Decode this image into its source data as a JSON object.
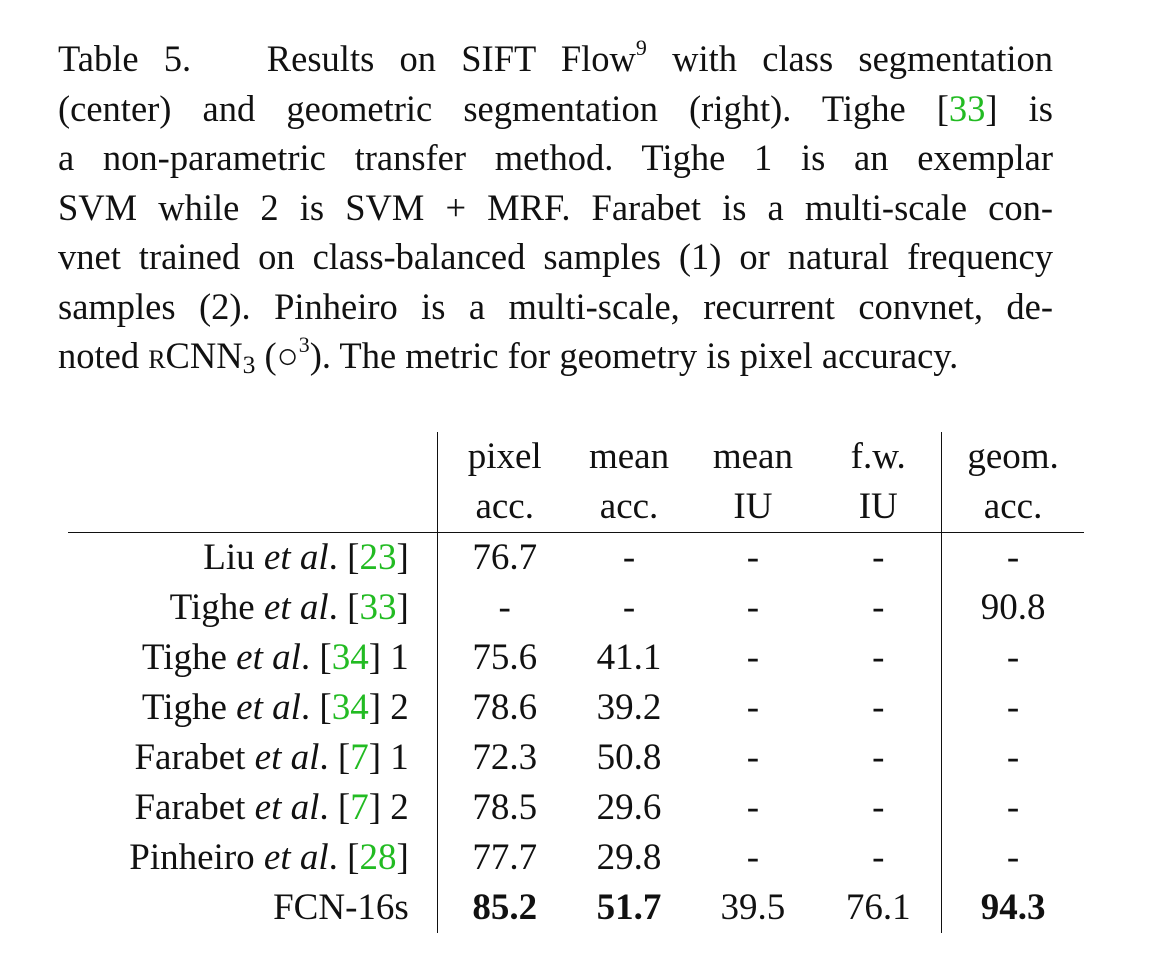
{
  "caption": {
    "lines": [
      [
        "Table 5.",
        "   Results on SIFT Flow",
        "9",
        " with class segmentation"
      ],
      [
        "(center) and geometric segmentation (right).  Tighe [",
        "33",
        "] is"
      ],
      [
        "a non-parametric transfer method.  Tighe 1 is an exemplar"
      ],
      [
        "SVM while 2 is SVM + MRF. Farabet is a multi-scale con-"
      ],
      [
        "vnet trained on class-balanced samples (1) or natural frequency"
      ],
      [
        "samples (2).  Pinheiro is a multi-scale, recurrent convnet, de-"
      ],
      [
        "noted ",
        "rCNN",
        "3",
        " (○",
        "3",
        "). The metric for geometry is pixel accuracy."
      ]
    ]
  },
  "table": {
    "headers": [
      [
        "pixel",
        "acc."
      ],
      [
        "mean",
        "acc."
      ],
      [
        "mean",
        "IU"
      ],
      [
        "f.w.",
        "IU"
      ],
      [
        "geom.",
        "acc."
      ]
    ],
    "rows": [
      {
        "name": "Liu ",
        "etal": "et al",
        "after": ". [",
        "cite": "23",
        "suffix": "]",
        "values": [
          "76.7",
          "-",
          "-",
          "-",
          "-"
        ]
      },
      {
        "name": "Tighe ",
        "etal": "et al",
        "after": ". [",
        "cite": "33",
        "suffix": "]",
        "values": [
          "-",
          "-",
          "-",
          "-",
          "90.8"
        ]
      },
      {
        "name": "Tighe ",
        "etal": "et al",
        "after": ". [",
        "cite": "34",
        "suffix": "] 1",
        "values": [
          "75.6",
          "41.1",
          "-",
          "-",
          "-"
        ]
      },
      {
        "name": "Tighe ",
        "etal": "et al",
        "after": ". [",
        "cite": "34",
        "suffix": "] 2",
        "values": [
          "78.6",
          "39.2",
          "-",
          "-",
          "-"
        ]
      },
      {
        "name": "Farabet ",
        "etal": "et al",
        "after": ". [",
        "cite": "7",
        "suffix": "] 1",
        "values": [
          "72.3",
          "50.8",
          "-",
          "-",
          "-"
        ]
      },
      {
        "name": "Farabet ",
        "etal": "et al",
        "after": ". [",
        "cite": "7",
        "suffix": "] 2",
        "values": [
          "78.5",
          "29.6",
          "-",
          "-",
          "-"
        ]
      },
      {
        "name": "Pinheiro ",
        "etal": "et al",
        "after": ". [",
        "cite": "28",
        "suffix": "]",
        "values": [
          "77.7",
          "29.8",
          "-",
          "-",
          "-"
        ]
      }
    ],
    "final_row": {
      "name": "FCN-16s",
      "values": [
        "85.2",
        "51.7",
        "39.5",
        "76.1",
        "94.3"
      ],
      "bold": [
        true,
        true,
        false,
        false,
        true
      ]
    }
  },
  "colors": {
    "citation": "#22bb22",
    "text": "#111111"
  }
}
